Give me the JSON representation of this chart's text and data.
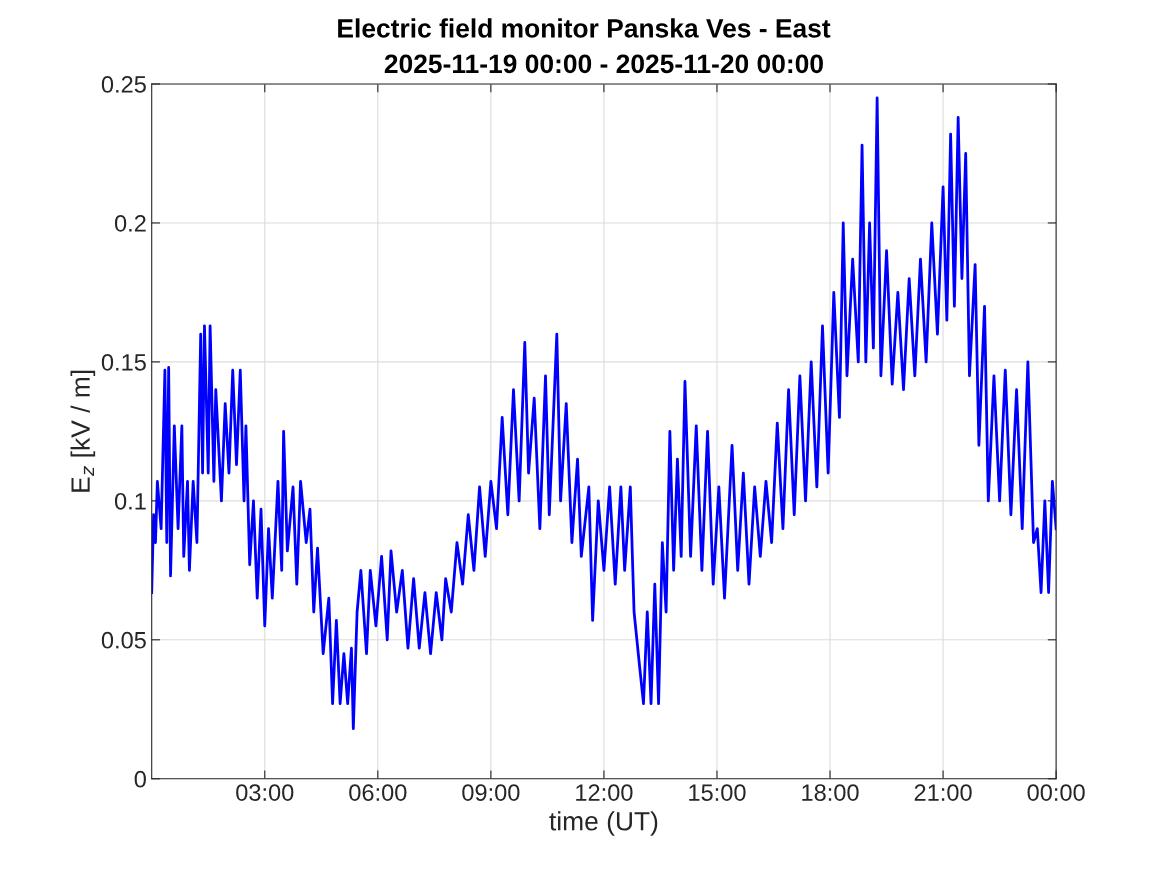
{
  "chart_data": {
    "type": "line",
    "title": "Electric field monitor Panska Ves - East",
    "subtitle": "2025-11-19 00:00 - 2025-11-20 00:00",
    "xlabel": "time (UT)",
    "ylabel": "E$_{z}$ [kV / m]",
    "series": [
      {
        "color": "#0000ff",
        "x": [
          0.0,
          0.05,
          0.1,
          0.15,
          0.25,
          0.35,
          0.4,
          0.45,
          0.5,
          0.6,
          0.7,
          0.8,
          0.85,
          0.95,
          1.0,
          1.1,
          1.2,
          1.3,
          1.35,
          1.4,
          1.5,
          1.55,
          1.65,
          1.7,
          1.85,
          1.95,
          2.05,
          2.15,
          2.25,
          2.35,
          2.45,
          2.5,
          2.6,
          2.7,
          2.8,
          2.9,
          3.0,
          3.1,
          3.2,
          3.35,
          3.45,
          3.5,
          3.6,
          3.75,
          3.85,
          3.95,
          4.1,
          4.2,
          4.3,
          4.4,
          4.55,
          4.7,
          4.8,
          4.9,
          5.0,
          5.1,
          5.2,
          5.3,
          5.35,
          5.45,
          5.55,
          5.7,
          5.8,
          5.95,
          6.1,
          6.25,
          6.35,
          6.5,
          6.65,
          6.8,
          6.95,
          7.1,
          7.25,
          7.4,
          7.55,
          7.7,
          7.8,
          7.95,
          8.1,
          8.25,
          8.4,
          8.55,
          8.7,
          8.85,
          9.0,
          9.15,
          9.3,
          9.45,
          9.6,
          9.75,
          9.9,
          10.0,
          10.15,
          10.3,
          10.45,
          10.55,
          10.75,
          10.85,
          11.0,
          11.15,
          11.3,
          11.4,
          11.6,
          11.7,
          11.85,
          12.0,
          12.15,
          12.3,
          12.45,
          12.55,
          12.7,
          12.8,
          12.95,
          13.05,
          13.15,
          13.25,
          13.35,
          13.45,
          13.55,
          13.65,
          13.75,
          13.85,
          13.95,
          14.05,
          14.15,
          14.3,
          14.45,
          14.6,
          14.75,
          14.9,
          15.05,
          15.2,
          15.4,
          15.55,
          15.7,
          15.85,
          16.0,
          16.15,
          16.3,
          16.45,
          16.6,
          16.75,
          16.9,
          17.05,
          17.2,
          17.35,
          17.5,
          17.65,
          17.8,
          17.95,
          18.1,
          18.25,
          18.35,
          18.45,
          18.6,
          18.75,
          18.85,
          18.95,
          19.05,
          19.15,
          19.25,
          19.35,
          19.5,
          19.65,
          19.8,
          19.95,
          20.1,
          20.25,
          20.4,
          20.55,
          20.7,
          20.85,
          21.0,
          21.1,
          21.2,
          21.3,
          21.4,
          21.5,
          21.6,
          21.7,
          21.85,
          21.95,
          22.1,
          22.2,
          22.35,
          22.5,
          22.65,
          22.8,
          22.95,
          23.1,
          23.25,
          23.4,
          23.5,
          23.6,
          23.7,
          23.8,
          23.9,
          24.0
        ],
        "values": [
          0.067,
          0.095,
          0.085,
          0.107,
          0.09,
          0.147,
          0.085,
          0.148,
          0.073,
          0.127,
          0.09,
          0.127,
          0.08,
          0.107,
          0.075,
          0.107,
          0.085,
          0.16,
          0.11,
          0.163,
          0.11,
          0.163,
          0.107,
          0.14,
          0.1,
          0.135,
          0.11,
          0.147,
          0.113,
          0.147,
          0.1,
          0.127,
          0.077,
          0.1,
          0.065,
          0.097,
          0.055,
          0.09,
          0.065,
          0.107,
          0.075,
          0.125,
          0.082,
          0.105,
          0.07,
          0.107,
          0.085,
          0.097,
          0.06,
          0.083,
          0.045,
          0.065,
          0.027,
          0.057,
          0.027,
          0.045,
          0.027,
          0.047,
          0.018,
          0.06,
          0.075,
          0.045,
          0.075,
          0.055,
          0.08,
          0.05,
          0.082,
          0.06,
          0.075,
          0.047,
          0.072,
          0.047,
          0.067,
          0.045,
          0.067,
          0.05,
          0.072,
          0.06,
          0.085,
          0.07,
          0.095,
          0.075,
          0.105,
          0.08,
          0.107,
          0.09,
          0.13,
          0.095,
          0.14,
          0.1,
          0.157,
          0.11,
          0.137,
          0.09,
          0.145,
          0.095,
          0.16,
          0.1,
          0.135,
          0.085,
          0.115,
          0.08,
          0.105,
          0.057,
          0.1,
          0.075,
          0.105,
          0.07,
          0.105,
          0.075,
          0.105,
          0.06,
          0.04,
          0.027,
          0.06,
          0.027,
          0.07,
          0.027,
          0.085,
          0.06,
          0.125,
          0.075,
          0.115,
          0.08,
          0.143,
          0.08,
          0.127,
          0.075,
          0.125,
          0.07,
          0.105,
          0.065,
          0.12,
          0.075,
          0.11,
          0.07,
          0.105,
          0.08,
          0.107,
          0.085,
          0.128,
          0.09,
          0.14,
          0.095,
          0.145,
          0.1,
          0.15,
          0.105,
          0.163,
          0.11,
          0.175,
          0.13,
          0.2,
          0.145,
          0.187,
          0.15,
          0.228,
          0.15,
          0.2,
          0.155,
          0.245,
          0.145,
          0.19,
          0.142,
          0.175,
          0.14,
          0.18,
          0.145,
          0.187,
          0.15,
          0.2,
          0.16,
          0.213,
          0.165,
          0.232,
          0.17,
          0.238,
          0.18,
          0.225,
          0.145,
          0.185,
          0.12,
          0.17,
          0.1,
          0.145,
          0.1,
          0.147,
          0.095,
          0.14,
          0.09,
          0.15,
          0.085,
          0.09,
          0.067,
          0.1,
          0.067,
          0.107,
          0.09
        ]
      }
    ],
    "xlim": [
      0,
      24
    ],
    "xticks": [
      {
        "value": 3,
        "label": "03:00"
      },
      {
        "value": 6,
        "label": "06:00"
      },
      {
        "value": 9,
        "label": "09:00"
      },
      {
        "value": 12,
        "label": "12:00"
      },
      {
        "value": 15,
        "label": "15:00"
      },
      {
        "value": 18,
        "label": "18:00"
      },
      {
        "value": 21,
        "label": "21:00"
      },
      {
        "value": 24,
        "label": "00:00"
      }
    ],
    "ylim": [
      0,
      0.25
    ],
    "yticks": [
      0,
      0.05,
      0.1,
      0.15,
      0.2,
      0.25
    ],
    "grid": true,
    "line_style": "solid",
    "marker": "none"
  }
}
